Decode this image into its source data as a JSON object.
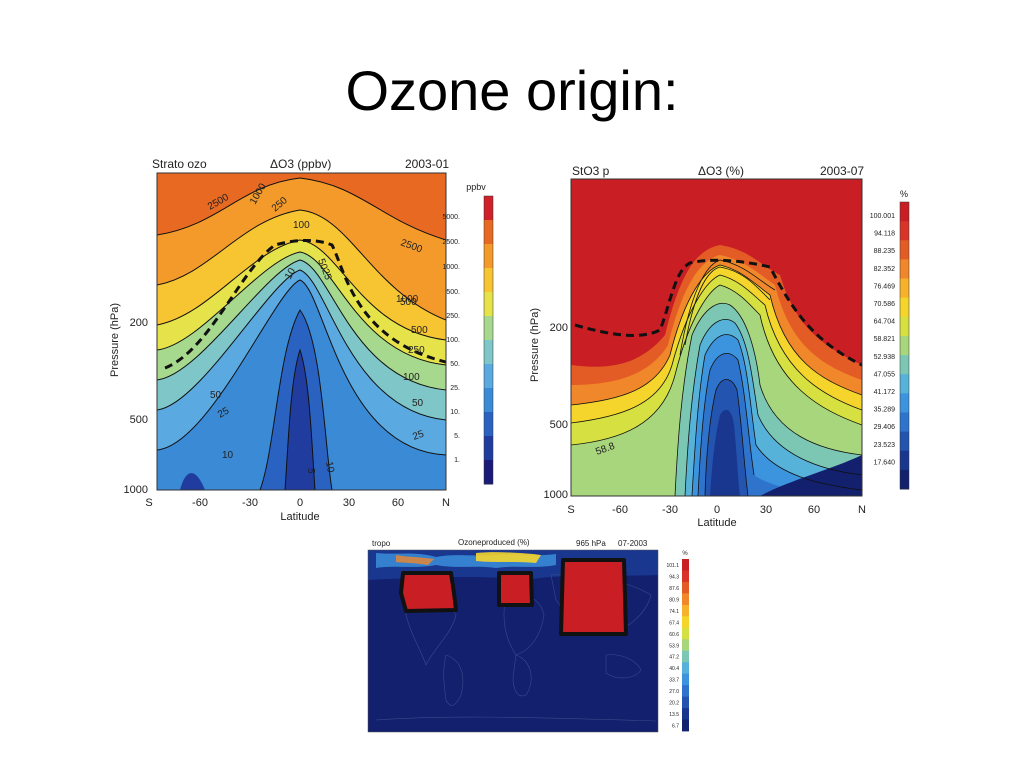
{
  "slide": {
    "title": "Ozone origin:"
  },
  "palette_cb1": [
    "#1a1a78",
    "#1f3c9e",
    "#2a62c2",
    "#3b8ad6",
    "#5aa9e0",
    "#7fc6c8",
    "#a6d98e",
    "#e6e34a",
    "#f7c531",
    "#f39a2a",
    "#e86a22",
    "#d0202a"
  ],
  "palette_cb2": [
    "#12206e",
    "#1a3790",
    "#2354b0",
    "#2e74cc",
    "#3d94de",
    "#57b2da",
    "#7cc7b4",
    "#a8d67c",
    "#d6e040",
    "#f5d52c",
    "#f5b22a",
    "#f0872a",
    "#e45c25",
    "#d8342a",
    "#c81e24"
  ],
  "chart_data": [
    {
      "type": "heatmap",
      "title": "ΔO3 (ppbv)",
      "left_label": "Strato ozo",
      "date_label": "2003-01",
      "xlabel": "Latitude",
      "ylabel": "Pressure (hPa)",
      "x_ticks": [
        "S",
        "-60",
        "-30",
        "0",
        "30",
        "60",
        "N"
      ],
      "y_ticks": [
        "200",
        "500",
        "1000"
      ],
      "colorbar_title": "ppbv",
      "colorbar_ticks": [
        "5000.",
        "2500.",
        "1000.",
        "500.",
        "250.",
        "100.",
        "50.",
        "25.",
        "10.",
        "5.",
        "1."
      ],
      "contour_labels": [
        "2500",
        "1000",
        "500",
        "250",
        "100",
        "50",
        "25",
        "10",
        "5",
        "2500",
        "1000",
        "500",
        "250",
        "100",
        "50",
        "25",
        "10",
        "50",
        "25",
        "10"
      ]
    },
    {
      "type": "heatmap",
      "title": "ΔO3 (%)",
      "left_label": "StO3 p",
      "date_label": "2003-07",
      "xlabel": "Latitude",
      "ylabel": "Pressure (hPa)",
      "x_ticks": [
        "S",
        "-60",
        "-30",
        "0",
        "30",
        "60",
        "N"
      ],
      "y_ticks": [
        "200",
        "500",
        "1000"
      ],
      "colorbar_title": "%",
      "colorbar_ticks": [
        "100.001",
        "94.118",
        "88.235",
        "82.352",
        "76.469",
        "70.586",
        "64.704",
        "58.821",
        "52.938",
        "47.055",
        "41.172",
        "35.289",
        "29.406",
        "23.523",
        "17.640"
      ],
      "contour_labels": [
        "58.8"
      ]
    },
    {
      "type": "heatmap",
      "title": "Ozoneproduced (%)",
      "left_label": "tropo",
      "level_label": "965 hPa",
      "date_label": "07-2003",
      "colorbar_title": "%",
      "colorbar_ticks": [
        "101.1",
        "94.3",
        "87.6",
        "80.9",
        "74.1",
        "67.4",
        "60.6",
        "53.9",
        "47.2",
        "40.4",
        "33.7",
        "27.0",
        "20.2",
        "13.5",
        "6.7"
      ]
    }
  ]
}
